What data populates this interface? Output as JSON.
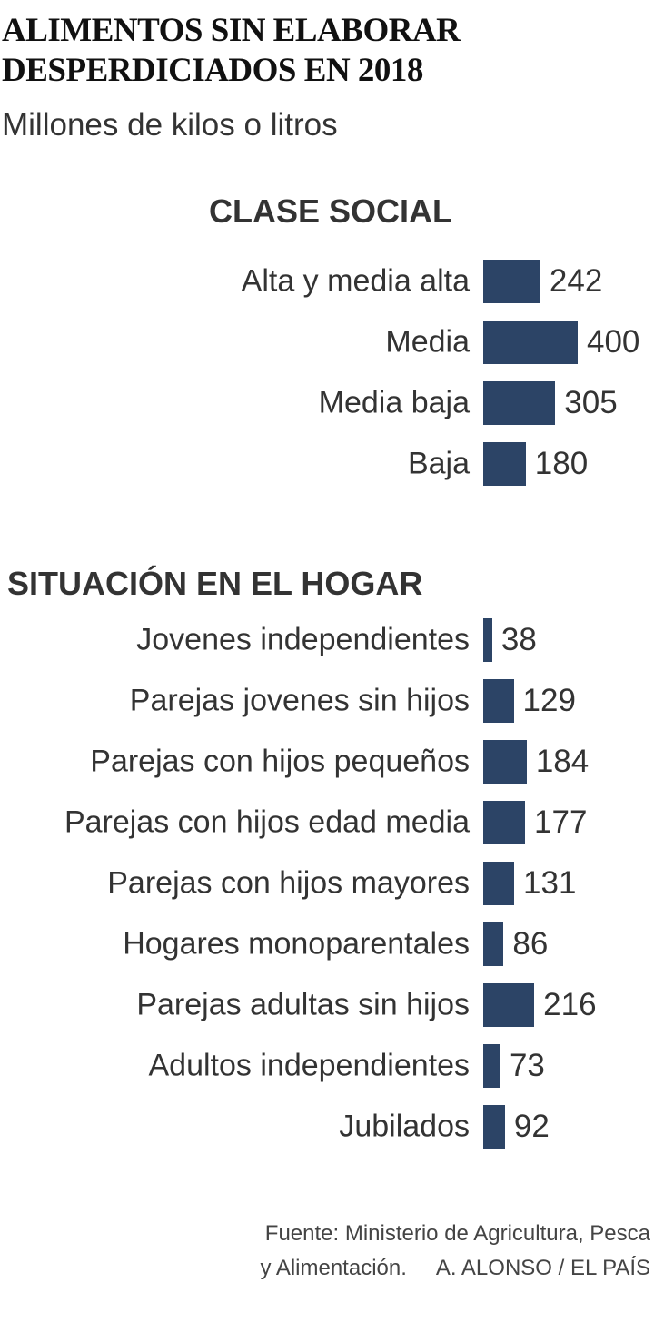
{
  "title_lines": [
    "ALIMENTOS SIN ELABORAR",
    "DESPERDICIADOS EN 2018"
  ],
  "subtitle": "Millones de kilos o litros",
  "source_line1": "Fuente: Ministerio de Agricultura, Pesca",
  "source_line2": "y Alimentación.     A. ALONSO / EL PAÍS",
  "colors": {
    "bar": "#2c4466"
  },
  "chart_data": [
    {
      "type": "bar",
      "orientation": "horizontal",
      "title": "CLASE SOCIAL",
      "categories": [
        "Alta y media alta",
        "Media",
        "Media baja",
        "Baja"
      ],
      "values": [
        242,
        400,
        305,
        180
      ],
      "data_labels": true
    },
    {
      "type": "bar",
      "orientation": "horizontal",
      "title": "SITUACIÓN EN EL HOGAR",
      "categories": [
        "Jovenes independientes",
        "Parejas jovenes sin hijos",
        "Parejas con hijos pequeños",
        "Parejas con hijos edad media",
        "Parejas con hijos mayores",
        "Hogares monoparentales",
        "Parejas adultas sin hijos",
        "Adultos independientes",
        "Jubilados"
      ],
      "values": [
        38,
        129,
        184,
        177,
        131,
        86,
        216,
        73,
        92
      ],
      "data_labels": true
    }
  ]
}
